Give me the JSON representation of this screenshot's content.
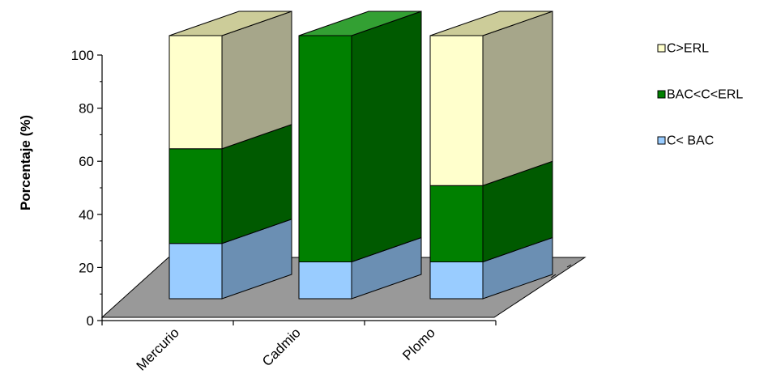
{
  "chart_data": {
    "type": "bar",
    "stacked": true,
    "three_d": true,
    "categories": [
      "Mercurio",
      "Cadmio",
      "Plomo"
    ],
    "series": [
      {
        "name": "C< BAC",
        "values": [
          21,
          14,
          14
        ],
        "color": "#99ccff",
        "side_color": "#6b8fb3",
        "top_color": "#b8dcff"
      },
      {
        "name": "BAC<C<ERL",
        "values": [
          36,
          86,
          29
        ],
        "color": "#008000",
        "side_color": "#005a00",
        "top_color": "#33a033"
      },
      {
        "name": "C>ERL",
        "values": [
          43,
          0,
          57
        ],
        "color": "#ffffcc",
        "side_color": "#a6a68a",
        "top_color": "#cccc99"
      }
    ],
    "ylabel": "Porcentaje (%)",
    "xlabel": "",
    "title": "",
    "ylim": [
      0,
      100
    ],
    "yticks": [
      0,
      20,
      40,
      60,
      80,
      100
    ],
    "legend_position": "right",
    "floor_color": "#999999"
  }
}
